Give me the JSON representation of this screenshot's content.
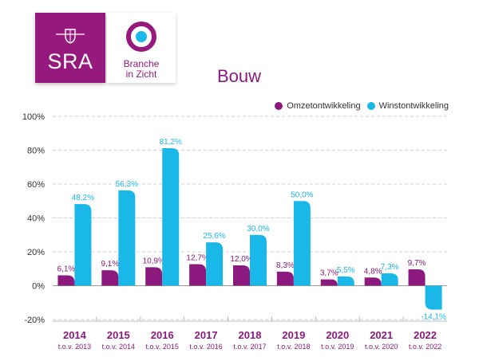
{
  "logos": {
    "sra": {
      "text": "SRA",
      "color": "#96197e",
      "icon": "crest-icon"
    },
    "branche": {
      "line1": "Branche",
      "line2": "in Zicht",
      "icon": "target-icon"
    }
  },
  "chart_data": {
    "type": "bar",
    "title": "Bouw",
    "categories": [
      "2014",
      "2015",
      "2016",
      "2017",
      "2018",
      "2019",
      "2020",
      "2021",
      "2022"
    ],
    "subcategories": [
      "t.o.v. 2013",
      "t.o.v. 2014",
      "t.o.v. 2015",
      "t.o.v. 2016",
      "t.o.v. 2017",
      "t.o.v. 2018",
      "t.o.v. 2019",
      "t.o.v. 2020",
      "t.o.v. 2022"
    ],
    "series": [
      {
        "name": "Omzetontwikkeling",
        "color": "#8c1a7e",
        "values": [
          6.1,
          9.1,
          10.9,
          12.7,
          12.0,
          8.3,
          3.7,
          4.8,
          9.7
        ],
        "labels": [
          "6,1%",
          "9,1%",
          "10,9%",
          "12,7%",
          "12,0%",
          "8,3%",
          "3,7%",
          "4,8%",
          "9,7%"
        ]
      },
      {
        "name": "Winstontwikkeling",
        "color": "#1ab8e8",
        "values": [
          48.2,
          56.3,
          81.2,
          25.6,
          30.0,
          50.0,
          5.5,
          7.3,
          -14.1
        ],
        "labels": [
          "48,2%",
          "56,3%",
          "81,2%",
          "25,6%",
          "30,0%",
          "50,0%",
          "5,5%",
          "7,3%",
          "-14,1%"
        ]
      }
    ],
    "ylim": [
      -20,
      100
    ],
    "yticks": [
      -20,
      0,
      20,
      40,
      60,
      80,
      100
    ],
    "ytick_labels": [
      "-20%",
      "0%",
      "20%",
      "40%",
      "60%",
      "80%",
      "100%"
    ],
    "grid": true,
    "legend": "top-right"
  }
}
